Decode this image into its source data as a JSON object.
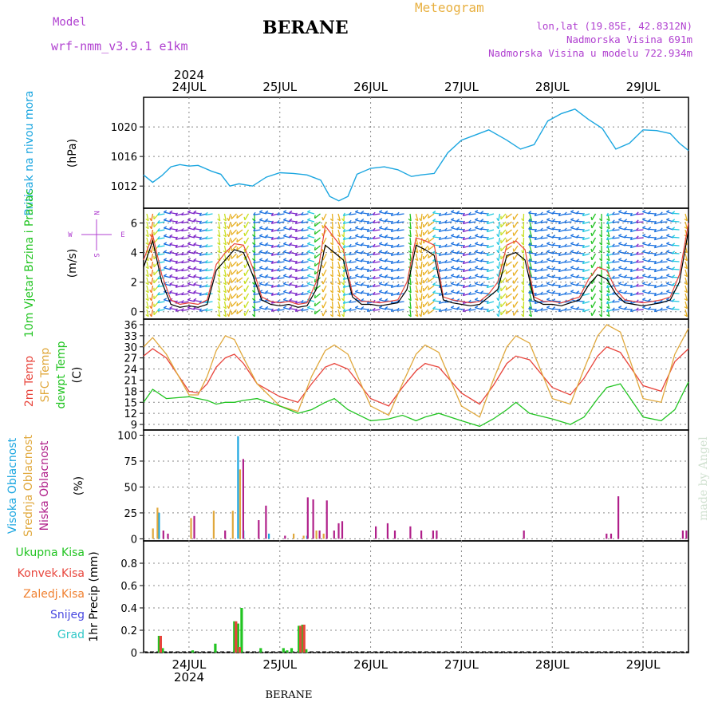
{
  "header": {
    "model_label": "Model",
    "model_name": "wrf-nmm_v3.9.1 e1km",
    "station": "BERANE",
    "meteogram": "Meteogram",
    "lonlat": "lon,lat (19.85E, 42.8312N)",
    "elevation": "Nadmorska Visina 691m",
    "model_elevation": "Nadmorska Visina u modelu 722.934m",
    "watermark": "made by Angel",
    "bottom_station": "BERANE"
  },
  "colors": {
    "pressure": "#1ba6e0",
    "temp2m": "#e8453c",
    "sfc_temp": "#e0a83c",
    "dewpt": "#22c422",
    "cloud_high": "#1ba6e0",
    "cloud_mid": "#e0a83c",
    "cloud_low": "#b0208a",
    "precip_total": "#22c422",
    "precip_conv": "#e8453c",
    "precip_frozen": "#f08030",
    "precip_snow": "#4848e0",
    "precip_hail": "#30c8c8",
    "purple_text": "#b040d0",
    "orange_text": "#e8b040"
  },
  "time_axis": {
    "year": "2024",
    "days": [
      "24JUL",
      "25JUL",
      "26JUL",
      "27JUL",
      "28JUL",
      "29JUL"
    ]
  },
  "chart_data": [
    {
      "type": "line",
      "id": "pressure",
      "ylabel": "Pritisak na nivou mora",
      "unit": "(hPa)",
      "ylim": [
        1009,
        1024
      ],
      "yticks": [
        1012,
        1016,
        1020
      ],
      "x_unit": "day of July 2024",
      "xlim": [
        23.5,
        29.5
      ],
      "grid": true,
      "series": [
        {
          "color": "pressure",
          "x": [
            23.5,
            23.6,
            23.7,
            23.8,
            23.9,
            24.0,
            24.1,
            24.25,
            24.35,
            24.45,
            24.55,
            24.7,
            24.85,
            25.0,
            25.15,
            25.3,
            25.45,
            25.55,
            25.65,
            25.75,
            25.85,
            26.0,
            26.15,
            26.3,
            26.45,
            26.55,
            26.7,
            26.85,
            27.0,
            27.15,
            27.3,
            27.5,
            27.65,
            27.8,
            27.95,
            28.1,
            28.25,
            28.4,
            28.55,
            28.7,
            28.85,
            29.0,
            29.15,
            29.3,
            29.4,
            29.5
          ],
          "y": [
            1013.5,
            1012.5,
            1013.4,
            1014.6,
            1014.9,
            1014.7,
            1014.8,
            1014.0,
            1013.6,
            1012.0,
            1012.3,
            1012.0,
            1013.2,
            1013.8,
            1013.7,
            1013.5,
            1012.8,
            1010.6,
            1010.0,
            1010.6,
            1013.6,
            1014.4,
            1014.6,
            1014.2,
            1013.3,
            1013.5,
            1013.7,
            1016.5,
            1018.2,
            1018.9,
            1019.6,
            1018.2,
            1017.0,
            1017.6,
            1020.8,
            1021.8,
            1022.4,
            1021.0,
            1019.8,
            1017.0,
            1017.8,
            1019.6,
            1019.5,
            1019.1,
            1017.8,
            1016.8
          ]
        }
      ]
    },
    {
      "type": "line",
      "id": "wind",
      "ylabel": "10m Vjetar Brzina i Pravac",
      "unit": "(m/s)",
      "compass": {
        "n": "N",
        "s": "S",
        "e": "E",
        "w": "W"
      },
      "ylim": [
        -0.5,
        7.0
      ],
      "yticks": [
        0,
        2,
        4,
        6
      ],
      "x_unit": "day of July 2024",
      "xlim": [
        23.5,
        29.5
      ],
      "grid": true,
      "series": [
        {
          "name": "speed",
          "color": "#000000",
          "x": [
            23.5,
            23.6,
            23.7,
            23.8,
            23.9,
            24.0,
            24.1,
            24.2,
            24.3,
            24.4,
            24.5,
            24.6,
            24.7,
            24.8,
            24.9,
            25.0,
            25.1,
            25.2,
            25.3,
            25.4,
            25.5,
            25.6,
            25.7,
            25.8,
            25.9,
            26.0,
            26.1,
            26.2,
            26.3,
            26.4,
            26.5,
            26.6,
            26.7,
            26.8,
            26.9,
            27.0,
            27.1,
            27.2,
            27.3,
            27.4,
            27.5,
            27.6,
            27.7,
            27.8,
            27.9,
            28.0,
            28.1,
            28.2,
            28.3,
            28.4,
            28.5,
            28.6,
            28.7,
            28.8,
            28.9,
            29.0,
            29.1,
            29.2,
            29.3,
            29.4,
            29.5
          ],
          "y": [
            3.0,
            4.8,
            2.0,
            0.5,
            0.3,
            0.4,
            0.3,
            0.5,
            2.8,
            3.5,
            4.2,
            4.0,
            2.5,
            0.8,
            0.5,
            0.4,
            0.5,
            0.3,
            0.4,
            1.5,
            4.5,
            4.0,
            3.5,
            1.0,
            0.5,
            0.5,
            0.4,
            0.5,
            0.6,
            1.5,
            4.5,
            4.2,
            3.8,
            0.8,
            0.6,
            0.5,
            0.4,
            0.5,
            1.0,
            1.5,
            3.8,
            4.0,
            3.5,
            0.8,
            0.5,
            0.5,
            0.4,
            0.6,
            0.8,
            1.8,
            2.5,
            2.2,
            1.2,
            0.6,
            0.5,
            0.4,
            0.5,
            0.6,
            0.8,
            2.0,
            5.5
          ]
        },
        {
          "name": "gust",
          "color": "#e8453c",
          "x": [
            23.5,
            23.6,
            23.7,
            23.8,
            23.9,
            24.0,
            24.1,
            24.2,
            24.3,
            24.4,
            24.5,
            24.6,
            24.7,
            24.8,
            24.9,
            25.0,
            25.1,
            25.2,
            25.3,
            25.4,
            25.5,
            25.6,
            25.7,
            25.8,
            25.9,
            26.0,
            26.1,
            26.2,
            26.3,
            26.4,
            26.5,
            26.6,
            26.7,
            26.8,
            26.9,
            27.0,
            27.1,
            27.2,
            27.3,
            27.4,
            27.5,
            27.6,
            27.7,
            27.8,
            27.9,
            28.0,
            28.1,
            28.2,
            28.3,
            28.4,
            28.5,
            28.6,
            28.7,
            28.8,
            28.9,
            29.0,
            29.1,
            29.2,
            29.3,
            29.4,
            29.5
          ],
          "y": [
            3.5,
            5.2,
            2.5,
            0.8,
            0.5,
            0.6,
            0.5,
            0.8,
            3.2,
            4.0,
            4.6,
            4.5,
            3.0,
            1.0,
            0.7,
            0.6,
            0.7,
            0.5,
            0.6,
            2.0,
            5.8,
            5.0,
            4.2,
            1.2,
            0.7,
            0.7,
            0.6,
            0.7,
            0.8,
            2.0,
            5.0,
            4.8,
            4.5,
            1.0,
            0.8,
            0.7,
            0.6,
            0.7,
            1.2,
            2.0,
            4.5,
            4.8,
            4.2,
            1.0,
            0.7,
            0.7,
            0.6,
            0.8,
            1.0,
            2.2,
            3.0,
            2.8,
            1.5,
            0.8,
            0.7,
            0.6,
            0.7,
            0.8,
            1.0,
            2.5,
            6.0
          ]
        }
      ]
    },
    {
      "type": "line",
      "id": "temperature",
      "ylabel": [
        "2m Temp",
        "SFC Temp",
        "dewpt Temp"
      ],
      "unit": "(C)",
      "ylim": [
        7.5,
        37.5
      ],
      "yticks": [
        9,
        12,
        15,
        18,
        21,
        24,
        27,
        30,
        33,
        36
      ],
      "x_unit": "day of July 2024",
      "xlim": [
        23.5,
        29.5
      ],
      "grid": true,
      "series": [
        {
          "name": "2m Temp",
          "color": "temp2m",
          "x": [
            23.5,
            23.6,
            23.75,
            24.0,
            24.1,
            24.2,
            24.3,
            24.4,
            24.5,
            24.6,
            24.75,
            25.0,
            25.2,
            25.35,
            25.5,
            25.6,
            25.75,
            26.0,
            26.2,
            26.35,
            26.5,
            26.6,
            26.75,
            27.0,
            27.2,
            27.35,
            27.5,
            27.6,
            27.75,
            28.0,
            28.2,
            28.35,
            28.5,
            28.6,
            28.75,
            29.0,
            29.2,
            29.35,
            29.5
          ],
          "y": [
            27.5,
            29.5,
            27.0,
            18.0,
            17.5,
            20.0,
            24.5,
            27.0,
            28.0,
            25.5,
            20.0,
            16.5,
            15.0,
            20.0,
            24.5,
            25.5,
            24.0,
            16.0,
            14.0,
            19.0,
            23.5,
            25.5,
            24.5,
            17.5,
            14.5,
            19.5,
            25.5,
            27.5,
            26.5,
            19.0,
            17.0,
            21.5,
            27.5,
            30.0,
            28.5,
            19.5,
            18.0,
            26.0,
            29.5
          ]
        },
        {
          "name": "SFC Temp",
          "color": "sfc_temp",
          "x": [
            23.5,
            23.6,
            23.75,
            24.0,
            24.1,
            24.2,
            24.3,
            24.4,
            24.5,
            24.6,
            24.75,
            25.0,
            25.2,
            25.35,
            25.5,
            25.6,
            25.75,
            26.0,
            26.2,
            26.35,
            26.5,
            26.6,
            26.75,
            27.0,
            27.2,
            27.35,
            27.5,
            27.6,
            27.75,
            28.0,
            28.2,
            28.35,
            28.5,
            28.6,
            28.75,
            29.0,
            29.2,
            29.35,
            29.5
          ],
          "y": [
            30.0,
            32.5,
            28.0,
            17.0,
            17.0,
            22.0,
            29.0,
            33.0,
            32.0,
            27.0,
            20.0,
            14.0,
            12.5,
            22.0,
            29.0,
            30.5,
            28.0,
            14.0,
            11.5,
            20.0,
            28.0,
            30.5,
            28.5,
            14.0,
            11.0,
            21.0,
            30.0,
            33.0,
            31.0,
            16.0,
            14.5,
            24.0,
            33.0,
            36.0,
            34.0,
            16.0,
            15.0,
            28.0,
            35.0
          ]
        },
        {
          "name": "dewpt Temp",
          "color": "dewpt",
          "x": [
            23.5,
            23.6,
            23.75,
            24.0,
            24.1,
            24.2,
            24.3,
            24.4,
            24.5,
            24.6,
            24.75,
            25.0,
            25.2,
            25.35,
            25.5,
            25.6,
            25.75,
            26.0,
            26.2,
            26.35,
            26.5,
            26.6,
            26.75,
            27.0,
            27.2,
            27.35,
            27.5,
            27.6,
            27.75,
            28.0,
            28.2,
            28.35,
            28.5,
            28.6,
            28.75,
            29.0,
            29.2,
            29.35,
            29.5
          ],
          "y": [
            15.0,
            18.5,
            16.0,
            16.5,
            16.0,
            15.5,
            14.5,
            15.0,
            15.0,
            15.5,
            16.0,
            14.0,
            12.0,
            13.0,
            15.0,
            16.0,
            13.0,
            10.0,
            10.5,
            11.5,
            10.0,
            11.0,
            12.0,
            10.0,
            8.5,
            10.5,
            13.0,
            15.0,
            12.0,
            10.5,
            9.0,
            11.0,
            16.0,
            19.0,
            20.0,
            11.0,
            10.0,
            13.0,
            20.5
          ]
        }
      ]
    },
    {
      "type": "bar",
      "id": "clouds",
      "ylabel": [
        "Visoka Oblacnost",
        "Srednja Oblacnost",
        "Niska Oblacnost"
      ],
      "unit": "(%)",
      "ylim": [
        -2,
        105
      ],
      "yticks": [
        0,
        25,
        50,
        75,
        100
      ],
      "x_unit": "day of July 2024",
      "xlim": [
        23.5,
        29.5
      ],
      "grid": true,
      "series": [
        {
          "name": "Visoka Oblacnost",
          "color": "cloud_high",
          "x": [
            23.67,
            24.54,
            24.6,
            24.88,
            25.3
          ],
          "values": [
            25,
            99,
            8,
            5,
            3
          ]
        },
        {
          "name": "Srednja Oblacnost",
          "color": "cloud_mid",
          "x": [
            23.62,
            23.67,
            24.04,
            24.29,
            24.5,
            24.58,
            25.17,
            25.28,
            25.42,
            25.5
          ],
          "values": [
            10,
            30,
            20,
            27,
            27,
            67,
            5,
            3,
            8,
            5
          ]
        },
        {
          "name": "Niska Oblacnost",
          "color": "cloud_low",
          "x": [
            23.7,
            23.75,
            24.04,
            24.38,
            24.58,
            24.75,
            24.83,
            25.04,
            25.29,
            25.35,
            25.42,
            25.5,
            25.58,
            25.63,
            25.67,
            26.04,
            26.17,
            26.25,
            26.42,
            26.54,
            26.67,
            26.71,
            27.67,
            28.58,
            28.63,
            28.71,
            29.42,
            29.46
          ],
          "values": [
            8,
            5,
            22,
            8,
            77,
            18,
            32,
            3,
            40,
            38,
            8,
            37,
            8,
            15,
            17,
            12,
            15,
            8,
            12,
            8,
            8,
            8,
            8,
            5,
            5,
            41,
            8,
            8
          ]
        }
      ]
    },
    {
      "type": "bar",
      "id": "precip",
      "ylabel": "1hr Precip (mm)",
      "legend": [
        "Ukupna Kisa",
        "Konvek.Kisa",
        "Zaledj.Kisa",
        "Snijeg",
        "Grad"
      ],
      "ylim": [
        0,
        1.0
      ],
      "yticks": [
        0,
        0.2,
        0.4,
        0.6,
        0.8
      ],
      "x_unit": "day of July 2024",
      "xlim": [
        23.5,
        29.5
      ],
      "grid": true,
      "series": [
        {
          "name": "Ukupna Kisa",
          "color": "precip_total",
          "x": [
            23.67,
            23.71,
            24.04,
            24.29,
            24.5,
            24.54,
            24.58,
            24.79,
            25.04,
            25.08,
            25.13,
            25.21,
            25.25,
            25.29
          ],
          "values": [
            0.15,
            0.04,
            0.02,
            0.08,
            0.28,
            0.26,
            0.4,
            0.04,
            0.04,
            0.02,
            0.04,
            0.24,
            0.25,
            0.03
          ]
        },
        {
          "name": "Konvek.Kisa",
          "color": "precip_conv",
          "x": [
            23.67,
            24.5,
            24.54,
            25.21,
            25.25
          ],
          "values": [
            0.15,
            0.28,
            0.05,
            0.24,
            0.25
          ]
        }
      ]
    }
  ]
}
